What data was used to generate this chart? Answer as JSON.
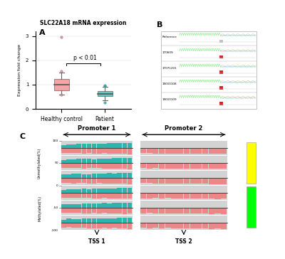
{
  "panel_A": {
    "title": "SLC22A18 mRNA expression",
    "ylabel": "Expression fold change",
    "categories": [
      "Healthy control",
      "Patient"
    ],
    "box_data": {
      "healthy": {
        "q1": 0.78,
        "median": 1.0,
        "q3": 1.22,
        "whisker_low": 0.6,
        "whisker_high": 1.5,
        "outliers": [
          0.58,
          2.95,
          1.55
        ]
      },
      "patient": {
        "q1": 0.52,
        "median": 0.62,
        "q3": 0.75,
        "whisker_low": 0.35,
        "whisker_high": 0.9,
        "outliers": [
          0.28,
          0.93,
          0.97
        ]
      }
    },
    "colors": {
      "healthy": "#F08080",
      "patient": "#20B2AA"
    },
    "pvalue_text": "p < 0.01",
    "ylim": [
      0,
      3.2
    ],
    "yticks": [
      0,
      1,
      2,
      3
    ],
    "panel_label": "A"
  },
  "panel_B": {
    "panel_label": "B",
    "labels": [
      "Reference",
      "170609",
      "17071201",
      "19010108",
      "19010109"
    ],
    "bg_color": "#FFFFFF",
    "peak_color_left": "#90EE90",
    "peak_color_right1": "#D3D3D3",
    "peak_color_right2": "#ADD8E6",
    "peak_color_right3": "#FFA07A",
    "red_box_color": "#CC0000",
    "num_rows": 5
  },
  "panel_C": {
    "panel_label": "C",
    "promoter1_title": "Promoter 1",
    "promoter2_title": "Promoter 2",
    "tss1_label": "TSS 1",
    "tss2_label": "TSS 2",
    "ylabel_top": "Unmethylated(%)",
    "ylabel_bot": "Methylated(%)",
    "num_rows": 6,
    "teal_color": "#20B2AA",
    "red_color": "#F08080",
    "bg_color": "#D3D3D3",
    "ytick_labels": [
      "100",
      "50",
      "0",
      "-50",
      "-100"
    ]
  }
}
